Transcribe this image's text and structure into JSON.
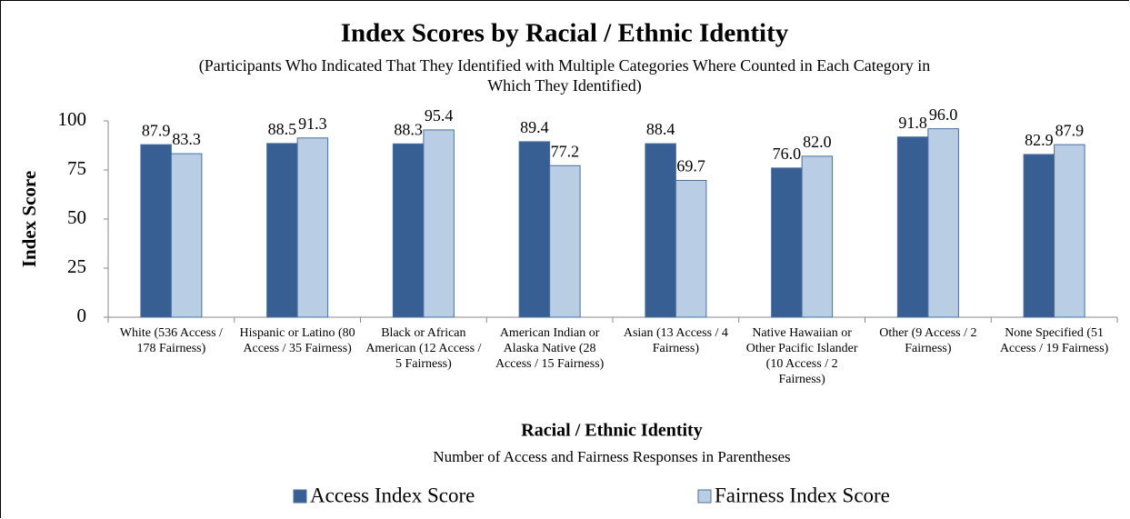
{
  "chart_data": {
    "type": "bar",
    "title": "Index Scores by Racial / Ethnic Identity",
    "subtitle": "(Participants Who Indicated That They Identified with Multiple Categories Where Counted in Each Category in Which They Identified)",
    "x_label": "Racial / Ethnic Identity",
    "x_note": "Number of Access and Fairness Responses in Parentheses",
    "y_label": "Index Score",
    "categories": [
      "White (536 Access / 178 Fairness)",
      "Hispanic or Latino (80 Access / 35 Fairness)",
      "Black or African American (12 Access / 5 Fairness)",
      "American Indian or Alaska Native (28 Access / 15 Fairness)",
      "Asian (13 Access / 4 Fairness)",
      "Native Hawaiian or Other Pacific Islander (10 Access / 2 Fairness)",
      "Other (9 Access / 2 Fairness)",
      "None Specified (51 Access / 19 Fairness)"
    ],
    "series": [
      {
        "name": "Access Index Score",
        "color": "#375f93",
        "values": [
          87.9,
          88.5,
          88.3,
          89.4,
          88.4,
          76.0,
          91.8,
          82.9
        ],
        "value_labels": [
          "87.9",
          "88.5",
          "88.3",
          "89.4",
          "88.4",
          "76.0",
          "91.8",
          "82.9"
        ]
      },
      {
        "name": "Fairness Index Score",
        "color": "#b9cde5",
        "values": [
          83.3,
          91.3,
          95.4,
          77.2,
          69.7,
          82.0,
          96.0,
          87.9
        ],
        "value_labels": [
          "83.3",
          "91.3",
          "95.4",
          "77.2",
          "69.7",
          "82.0",
          "96.0",
          "87.9"
        ]
      }
    ],
    "ylim": [
      0,
      100
    ],
    "yticks": [
      0,
      25,
      50,
      75,
      100
    ],
    "grid": false,
    "legend": "bottom"
  }
}
